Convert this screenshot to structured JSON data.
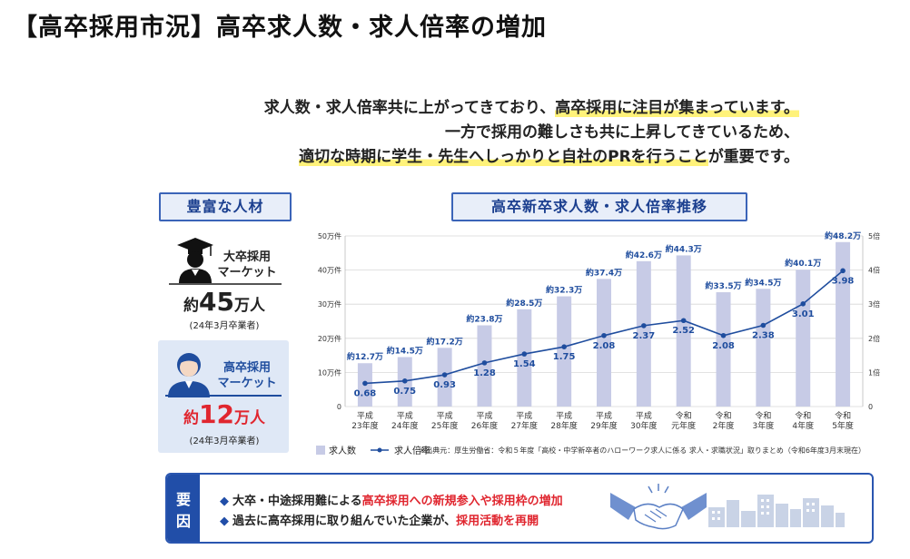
{
  "title": "【高卒採用市況】高卒求人数・求人倍率の増加",
  "lead": {
    "line1_a": "求人数・求人倍率共に上がってきており、",
    "line1_b": "高卒採用に注目が集まっています。",
    "line2": "一方で採用の難しさも共に上昇してきているため、",
    "line3_a": "適切な時期に学生・先生へしっかりと自社のPRを行うこと",
    "line3_b": "が重要です。"
  },
  "left_panel": {
    "label": "豊富な人材",
    "univ_market": "大卒採用\nマーケット",
    "univ_market_l1": "大卒採用",
    "univ_market_l2": "マーケット",
    "univ_count_pre": "約",
    "univ_count_num": "45",
    "univ_count_unit": "万人",
    "univ_note": "(24年3月卒業者)",
    "hs_market_l1": "高卒採用",
    "hs_market_l2": "マーケット",
    "hs_count_pre": "約",
    "hs_count_num": "12",
    "hs_count_unit": "万人",
    "hs_note": "(24年3月卒業者)"
  },
  "chart_label": "高卒新卒求人数・求人倍率推移",
  "chart_data": {
    "type": "bar",
    "categories": [
      [
        "平成",
        "23年度"
      ],
      [
        "平成",
        "24年度"
      ],
      [
        "平成",
        "25年度"
      ],
      [
        "平成",
        "26年度"
      ],
      [
        "平成",
        "27年度"
      ],
      [
        "平成",
        "28年度"
      ],
      [
        "平成",
        "29年度"
      ],
      [
        "平成",
        "30年度"
      ],
      [
        "令和",
        "元年度"
      ],
      [
        "令和",
        "2年度"
      ],
      [
        "令和",
        "3年度"
      ],
      [
        "令和",
        "4年度"
      ],
      [
        "令和",
        "5年度"
      ]
    ],
    "series": [
      {
        "name": "求人数",
        "type": "bar",
        "axis": "left",
        "values": [
          12.7,
          14.5,
          17.2,
          23.8,
          28.5,
          32.3,
          37.4,
          42.6,
          44.3,
          33.5,
          34.5,
          40.1,
          48.2
        ],
        "labels": [
          "約12.7万",
          "約14.5万",
          "約17.2万",
          "約23.8万",
          "約28.5万",
          "約32.3万",
          "約37.4万",
          "約42.6万",
          "約44.3万",
          "約33.5万",
          "約34.5万",
          "約40.1万",
          "約48.2万"
        ]
      },
      {
        "name": "求人倍率",
        "type": "line",
        "axis": "right",
        "values": [
          0.68,
          0.75,
          0.93,
          1.28,
          1.54,
          1.75,
          2.08,
          2.37,
          2.52,
          2.08,
          2.38,
          3.01,
          3.98
        ],
        "labels": [
          "0.68",
          "0.75",
          "0.93",
          "1.28",
          "1.54",
          "1.75",
          "2.08",
          "2.37",
          "2.52",
          "2.08",
          "2.38",
          "3.01",
          "3.98"
        ]
      }
    ],
    "y_left": {
      "min": 0,
      "max": 50,
      "ticks": [
        0,
        10,
        20,
        30,
        40,
        50
      ],
      "tick_labels": [
        "0",
        "10万件",
        "20万件",
        "30万件",
        "40万件",
        "50万件"
      ]
    },
    "y_right": {
      "min": 0,
      "max": 5,
      "ticks": [
        0,
        1,
        2,
        3,
        4,
        5
      ],
      "tick_labels": [
        "0",
        "1倍",
        "2倍",
        "3倍",
        "4倍",
        "5倍"
      ]
    },
    "grid": true,
    "legend": "bottom-left",
    "colors": {
      "bar": "#c7cbe6",
      "line": "#1f4d9e"
    },
    "source": "※出典元：厚生労働省：令和５年度「高校・中学新卒者のハローワーク求人に係る 求人・求職状況」取りまとめ（令和6年度3月末現在）"
  },
  "factors": {
    "tag_1": "要",
    "tag_2": "因",
    "line1_a": "大卒・中途採用難による",
    "line1_b": "高卒採用への新規参入や採用枠の増加",
    "line2_a": "過去に高卒採用に取り組んでいた企業が、",
    "line2_b": "採用活動を再開",
    "bullet": "◆"
  },
  "icons": [
    "graduate-cap-icon",
    "student-icon",
    "handshake-icon",
    "city-skyline-icon"
  ]
}
